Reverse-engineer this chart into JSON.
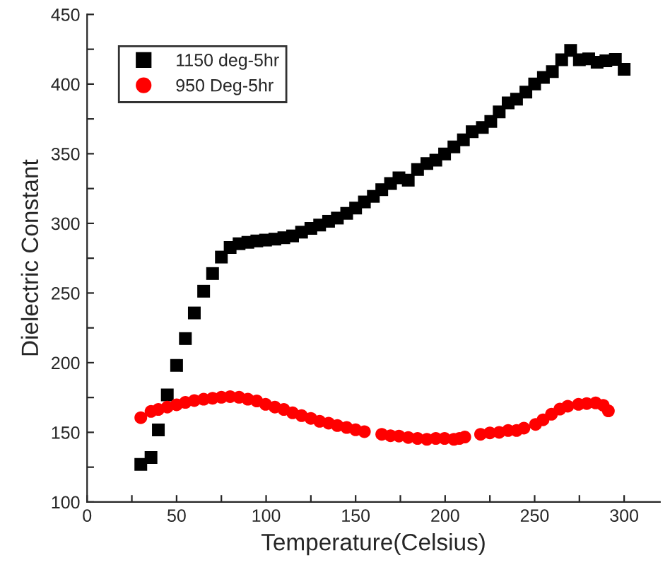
{
  "chart_data": {
    "type": "scatter",
    "xlabel": "Temperature(Celsius)",
    "ylabel": "Dielectric Constant",
    "xlim": [
      0,
      320
    ],
    "ylim": [
      100,
      450
    ],
    "xticks": [
      0,
      {
        "value": 25,
        "label": null
      },
      50,
      {
        "value": 75,
        "label": null
      },
      100,
      {
        "value": 125,
        "label": null
      },
      150,
      {
        "value": 175,
        "label": null
      },
      200,
      {
        "value": 225,
        "label": null
      },
      250,
      {
        "value": 275,
        "label": null
      },
      300
    ],
    "yticks": [
      100,
      {
        "value": 125,
        "label": null
      },
      150,
      {
        "value": 175,
        "label": null
      },
      200,
      {
        "value": 225,
        "label": null
      },
      250,
      {
        "value": 275,
        "label": null
      },
      300,
      {
        "value": 325,
        "label": null
      },
      350,
      {
        "value": 375,
        "label": null
      },
      400,
      {
        "value": 425,
        "label": null
      },
      450
    ],
    "grid": false,
    "legend": "top left",
    "series": [
      {
        "name": "1150 deg-5hr",
        "color": "#000000",
        "marker": "square",
        "x": [
          30,
          35.7,
          39.8,
          44.8,
          50,
          54.9,
          59.9,
          65.1,
          70.1,
          75,
          79.9,
          84.9,
          89.8,
          94.8,
          99.7,
          104.9,
          109.9,
          114.8,
          119.8,
          125,
          129.9,
          134.9,
          139.8,
          145,
          150,
          154.9,
          159.9,
          164.6,
          169.5,
          174.2,
          179.4,
          184.6,
          189.8,
          194.8,
          199.7,
          204.9,
          210.2,
          215.1,
          220.8,
          225.5,
          230.2,
          235.2,
          239.9,
          245.1,
          250,
          254.9,
          259.9,
          265.1,
          270.1,
          275,
          280.2,
          284.9,
          289.8,
          295.1,
          300
        ],
        "values": [
          127,
          132,
          151.7,
          176.8,
          198,
          217.3,
          235.7,
          251.3,
          264,
          275.8,
          282.7,
          285.4,
          286.4,
          287.4,
          288,
          288.7,
          289.7,
          291,
          293.7,
          296.4,
          298.8,
          301.5,
          303.8,
          307.2,
          311,
          315.4,
          319.4,
          324.2,
          328.6,
          332.7,
          331,
          338.6,
          343,
          345.4,
          349.8,
          354.9,
          360,
          365.8,
          368.8,
          373.2,
          380,
          386.5,
          389.2,
          394.3,
          400.1,
          404.8,
          408.9,
          417.4,
          424.2,
          417.4,
          418.1,
          415.7,
          416.7,
          417.7,
          410.6
        ]
      },
      {
        "name": "950 Deg-5hr",
        "color": "#ff0000",
        "marker": "circle",
        "x": [
          30,
          35.7,
          39.8,
          44.8,
          50,
          54.9,
          59.9,
          65.1,
          70.1,
          75,
          79.9,
          84.9,
          89.8,
          94.8,
          99.7,
          104.9,
          109.9,
          114.8,
          119.8,
          125,
          129.9,
          134.9,
          139.8,
          145,
          150,
          154.9,
          164.6,
          169.5,
          174.2,
          179.4,
          184.6,
          189.8,
          194.8,
          199.7,
          204.9,
          208,
          211,
          219.8,
          225,
          230.2,
          235.2,
          239.9,
          244,
          250.5,
          254.7,
          259.4,
          264.1,
          268.5,
          274.5,
          279.1,
          284.1,
          288.3,
          291.2
        ],
        "values": [
          160.5,
          165,
          166.4,
          168.1,
          169.8,
          171.5,
          172.8,
          173.8,
          174.5,
          175.2,
          175.6,
          175.2,
          173.8,
          172.5,
          170.1,
          168.1,
          166.4,
          164,
          162,
          160,
          157.9,
          156.6,
          154.9,
          153.5,
          151.8,
          150.5,
          148.6,
          147.6,
          147.3,
          146.3,
          145.6,
          145,
          145.6,
          145.6,
          145,
          145.6,
          146.6,
          148.6,
          149.6,
          150,
          151.3,
          151.3,
          153,
          155.7,
          159,
          163,
          166.7,
          168.8,
          170.1,
          170.7,
          171.1,
          169.4,
          165.4
        ]
      }
    ]
  }
}
